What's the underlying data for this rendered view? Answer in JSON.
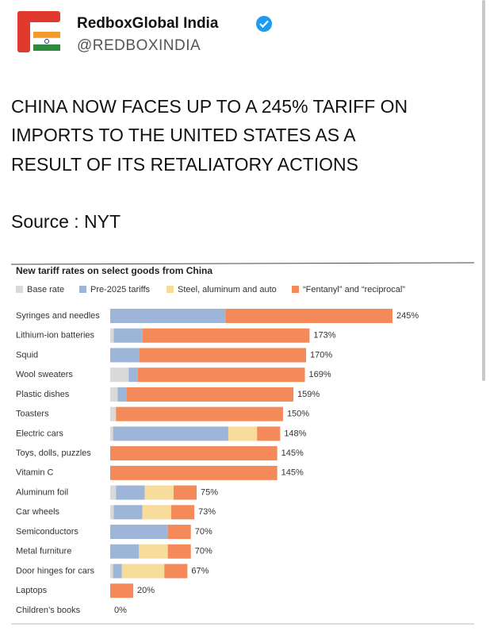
{
  "header": {
    "name": "RedboxGlobal India",
    "handle": "@REDBOXINDIA"
  },
  "tweet": {
    "text_lines": [
      "CHINA NOW FACES UP TO A 245% TARIFF ON",
      "IMPORTS TO THE UNITED STATES AS A",
      "RESULT OF ITS RETALIATORY ACTIONS"
    ],
    "source": "Source : NYT"
  },
  "chart_data": {
    "type": "stacked-bar-horizontal",
    "title": "New tariff rates on select goods from China",
    "categories": [
      "Syringes and needles",
      "Lithium-ion batteries",
      "Squid",
      "Wool sweaters",
      "Plastic dishes",
      "Toasters",
      "Electric cars",
      "Toys, dolls, puzzles",
      "Vitamin C",
      "Aluminum foil",
      "Car wheels",
      "Semiconductors",
      "Metal furniture",
      "Door hinges for cars",
      "Laptops",
      "Children’s books"
    ],
    "series": [
      {
        "name": "Base rate",
        "color": "#d9d9d9",
        "values": [
          0,
          3,
          0,
          16,
          6.5,
          5,
          2.5,
          0,
          0,
          5,
          3,
          0,
          0,
          2.5,
          0,
          0
        ]
      },
      {
        "name": "Pre-2025 tariffs",
        "color": "#9db6d8",
        "values": [
          100,
          25,
          25,
          8,
          7.5,
          0,
          100,
          0,
          0,
          25,
          25,
          50,
          25,
          7.5,
          0,
          0
        ]
      },
      {
        "name": "Steel, aluminum and auto",
        "color": "#f8dc9c",
        "values": [
          0,
          0,
          0,
          0,
          0,
          0,
          25,
          0,
          0,
          25,
          25,
          0,
          25,
          37,
          0,
          0
        ]
      },
      {
        "name": "“Fentanyl” and “reciprocal”",
        "color": "#f4895a",
        "values": [
          145,
          145,
          145,
          145,
          145,
          145,
          20,
          145,
          145,
          20,
          20,
          20,
          20,
          20,
          20,
          0
        ]
      }
    ],
    "total_labels": [
      "245%",
      "173%",
      "170%",
      "169%",
      "159%",
      "150%",
      "148%",
      "145%",
      "145%",
      "75%",
      "73%",
      "70%",
      "70%",
      "67%",
      "20%",
      "0%"
    ]
  }
}
